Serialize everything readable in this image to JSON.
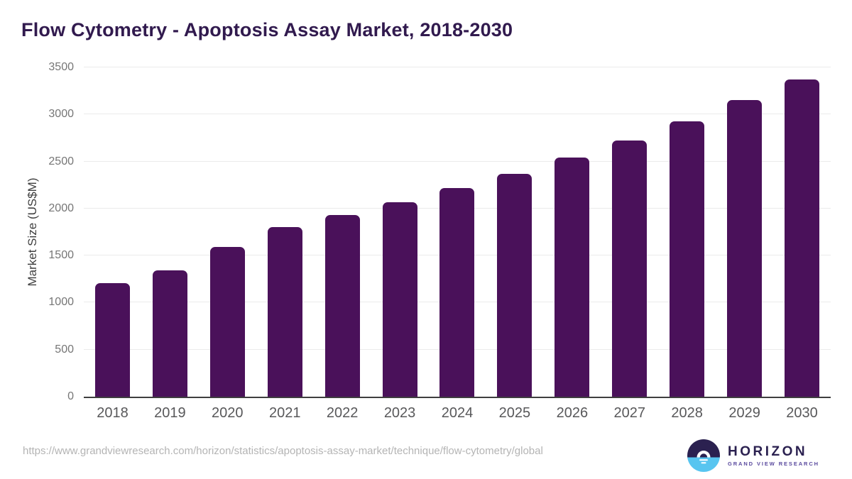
{
  "header": {
    "title": "Flow Cytometry - Apoptosis Assay Market, 2018-2030",
    "title_color": "#311a4e"
  },
  "chart_data": {
    "type": "bar",
    "title": "Flow Cytometry - Apoptosis Assay Market, 2018-2030",
    "categories": [
      "2018",
      "2019",
      "2020",
      "2021",
      "2022",
      "2023",
      "2024",
      "2025",
      "2026",
      "2027",
      "2028",
      "2029",
      "2030"
    ],
    "values": [
      1210,
      1340,
      1590,
      1800,
      1930,
      2070,
      2220,
      2370,
      2540,
      2720,
      2930,
      3150,
      3370
    ],
    "xlabel": "",
    "ylabel": "Market Size (US$M)",
    "ylim": [
      0,
      3500
    ],
    "yticks": [
      0,
      500,
      1000,
      1500,
      2000,
      2500,
      3000,
      3500
    ],
    "grid": true,
    "legend": null,
    "bar_color": "#4a115a",
    "gridline_color": "#ebebeb",
    "axis_line_color": "#3f3f3f",
    "tick_label_color": "#767676"
  },
  "footer": {
    "source_url": "https://www.grandviewresearch.com/horizon/statistics/apoptosis-assay-market/technique/flow-cytometry/global",
    "logo": {
      "name": "HORIZON",
      "subtitle": "GRAND VIEW RESEARCH",
      "icon": "horizon-sunrise-icon",
      "icon_top_color": "#2b2150",
      "icon_bottom_color": "#58c5f0",
      "name_color": "#2b2150",
      "subtitle_color": "#5a4a9e"
    }
  }
}
